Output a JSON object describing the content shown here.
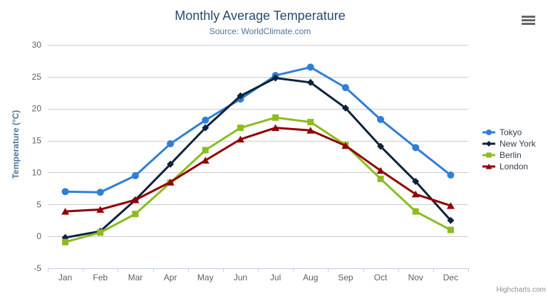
{
  "credit": "Highcharts.com",
  "icons": {
    "export_menu": "hamburger-icon"
  },
  "colors": {
    "title": "#274b6d",
    "subtitle": "#4d759e",
    "axis_title": "#4d759e",
    "axis_label": "#606060",
    "grid_line": "#cccccc",
    "axis_line": "#c0d0e0",
    "legend_text": "#333e48",
    "credit": "#909090",
    "menu_icon": "#666666",
    "background": "#ffffff"
  },
  "chart_data": {
    "type": "line",
    "title": "Monthly Average Temperature",
    "subtitle": "Source: WorldClimate.com",
    "xlabel": "",
    "ylabel": "Temperature (°C)",
    "categories": [
      "Jan",
      "Feb",
      "Mar",
      "Apr",
      "May",
      "Jun",
      "Jul",
      "Aug",
      "Sep",
      "Oct",
      "Nov",
      "Dec"
    ],
    "ylim": [
      -5,
      30
    ],
    "ytick_interval": 5,
    "yticks": [
      -5,
      0,
      5,
      10,
      15,
      20,
      25,
      30
    ],
    "grid": true,
    "legend_position": "right",
    "series": [
      {
        "name": "Tokyo",
        "color": "#2f7ed8",
        "marker": "circle",
        "values": [
          7.0,
          6.9,
          9.5,
          14.5,
          18.2,
          21.5,
          25.2,
          26.5,
          23.3,
          18.3,
          13.9,
          9.6
        ]
      },
      {
        "name": "New York",
        "color": "#0d233a",
        "marker": "diamond",
        "values": [
          -0.2,
          0.8,
          5.7,
          11.3,
          17.0,
          22.0,
          24.8,
          24.1,
          20.1,
          14.1,
          8.6,
          2.5
        ]
      },
      {
        "name": "Berlin",
        "color": "#8bbc21",
        "marker": "square",
        "values": [
          -0.9,
          0.6,
          3.5,
          8.4,
          13.5,
          17.0,
          18.6,
          17.9,
          14.3,
          9.0,
          3.9,
          1.0
        ]
      },
      {
        "name": "London",
        "color": "#910000",
        "marker": "triangle",
        "values": [
          3.9,
          4.2,
          5.7,
          8.5,
          11.9,
          15.2,
          17.0,
          16.6,
          14.2,
          10.3,
          6.6,
          4.8
        ]
      }
    ]
  }
}
